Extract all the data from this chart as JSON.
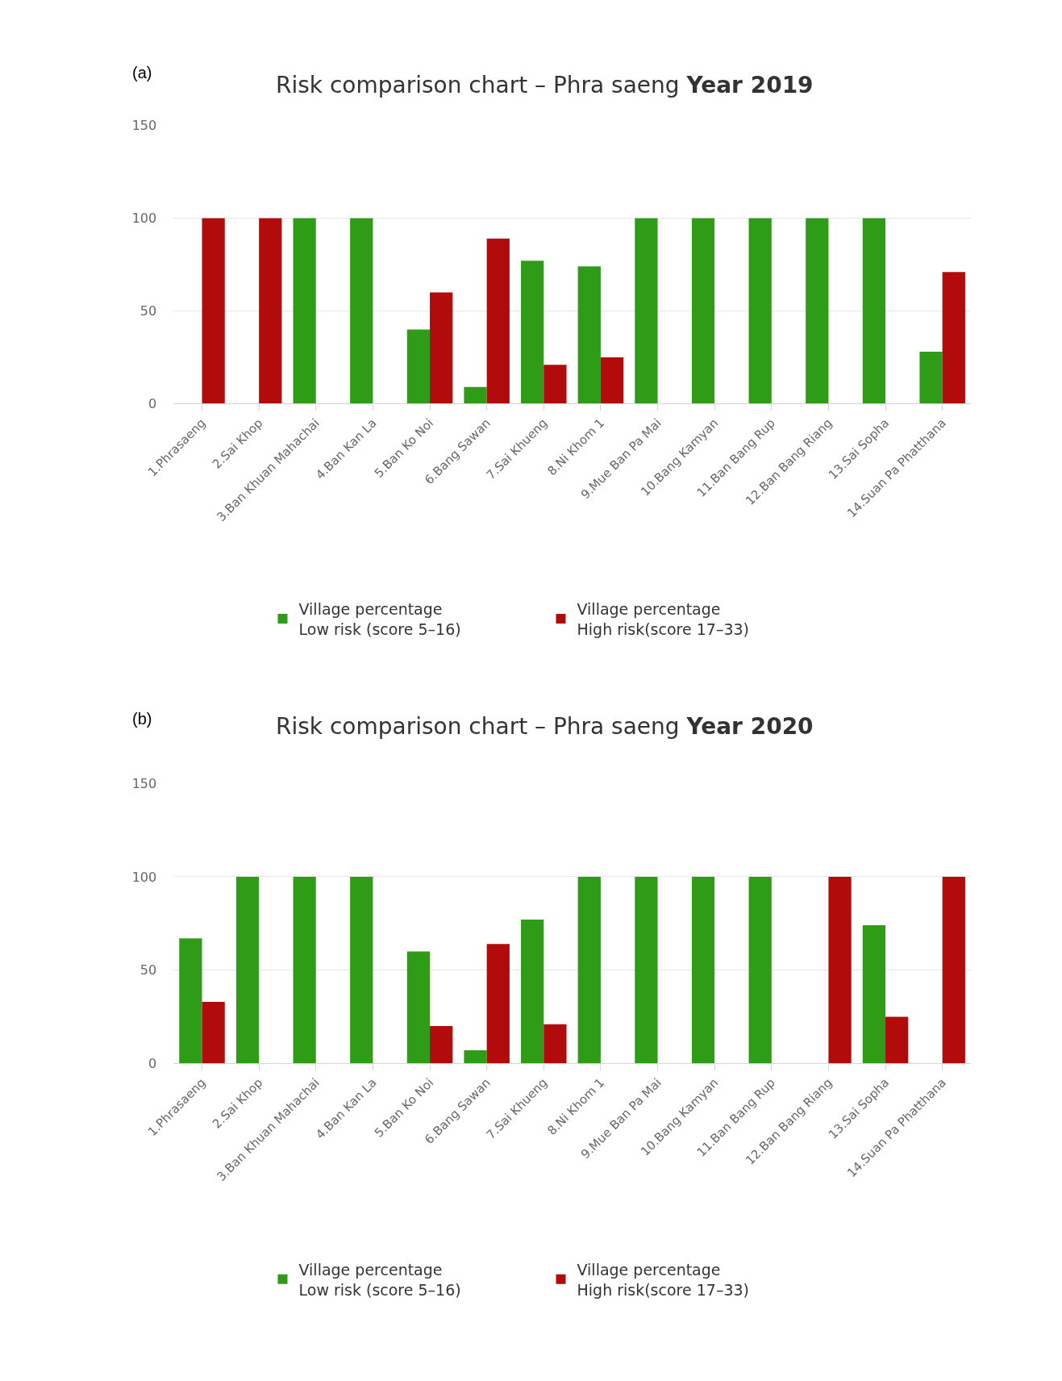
{
  "chart_data": [
    {
      "type": "bar",
      "title": "Risk comparison chart – Phra saeng Year 2019",
      "annotations": [
        "(a)"
      ],
      "categories": [
        "1.Phrasaeng",
        "2.Sai Khop",
        "3.Ban Khuan Mahachai",
        "4.Ban Kan La",
        "5.Ban Ko Noi",
        "6.Bang Sawan",
        "7.Sai Khueng",
        "8.Ni Khom 1",
        "9.Mue Ban Pa Mai",
        "10.Bang Kamyan",
        "11.Ban Bang Rup",
        "12.Ban Bang Riang",
        "13.Sai Sopha",
        "14.Suan Pa Phatthana"
      ],
      "series": [
        {
          "name": "Village percentage\nLow risk (score 5–16)",
          "color": "#2e9c16",
          "values": [
            0,
            0,
            100,
            100,
            40,
            9,
            77,
            74,
            100,
            100,
            100,
            100,
            100,
            28
          ]
        },
        {
          "name": "Village percentage\nHigh risk(score 17–33)",
          "color": "#b10b0b",
          "values": [
            100,
            100,
            0,
            0,
            60,
            89,
            21,
            25,
            0,
            0,
            0,
            0,
            0,
            71
          ]
        }
      ],
      "ylim": [
        0,
        150
      ],
      "yticks": [
        0,
        50,
        100,
        150
      ],
      "grid": "y",
      "legend": "bottom"
    },
    {
      "type": "bar",
      "title": "Risk comparison chart – Phra saeng Year 2020",
      "annotations": [
        "(b)"
      ],
      "categories": [
        "1.Phrasaeng",
        "2.Sai Khop",
        "3.Ban Khuan Mahachai",
        "4.Ban Kan La",
        "5.Ban Ko Noi",
        "6.Bang Sawan",
        "7.Sai Khueng",
        "8.Ni Khom 1",
        "9.Mue Ban Pa Mai",
        "10.Bang Kamyan",
        "11.Ban Bang Rup",
        "12.Ban Bang Riang",
        "13.Sai Sopha",
        "14.Suan Pa Phatthana"
      ],
      "series": [
        {
          "name": "Village percentage\nLow risk (score 5–16)",
          "color": "#2e9c16",
          "values": [
            67,
            100,
            100,
            100,
            60,
            7,
            77,
            100,
            100,
            100,
            100,
            0,
            74,
            0
          ]
        },
        {
          "name": "Village percentage\nHigh risk(score 17–33)",
          "color": "#b10b0b",
          "values": [
            33,
            0,
            0,
            0,
            20,
            64,
            21,
            0,
            0,
            0,
            0,
            100,
            25,
            100
          ]
        }
      ],
      "ylim": [
        0,
        150
      ],
      "yticks": [
        0,
        50,
        100,
        150
      ],
      "grid": "y",
      "legend": "bottom"
    }
  ]
}
